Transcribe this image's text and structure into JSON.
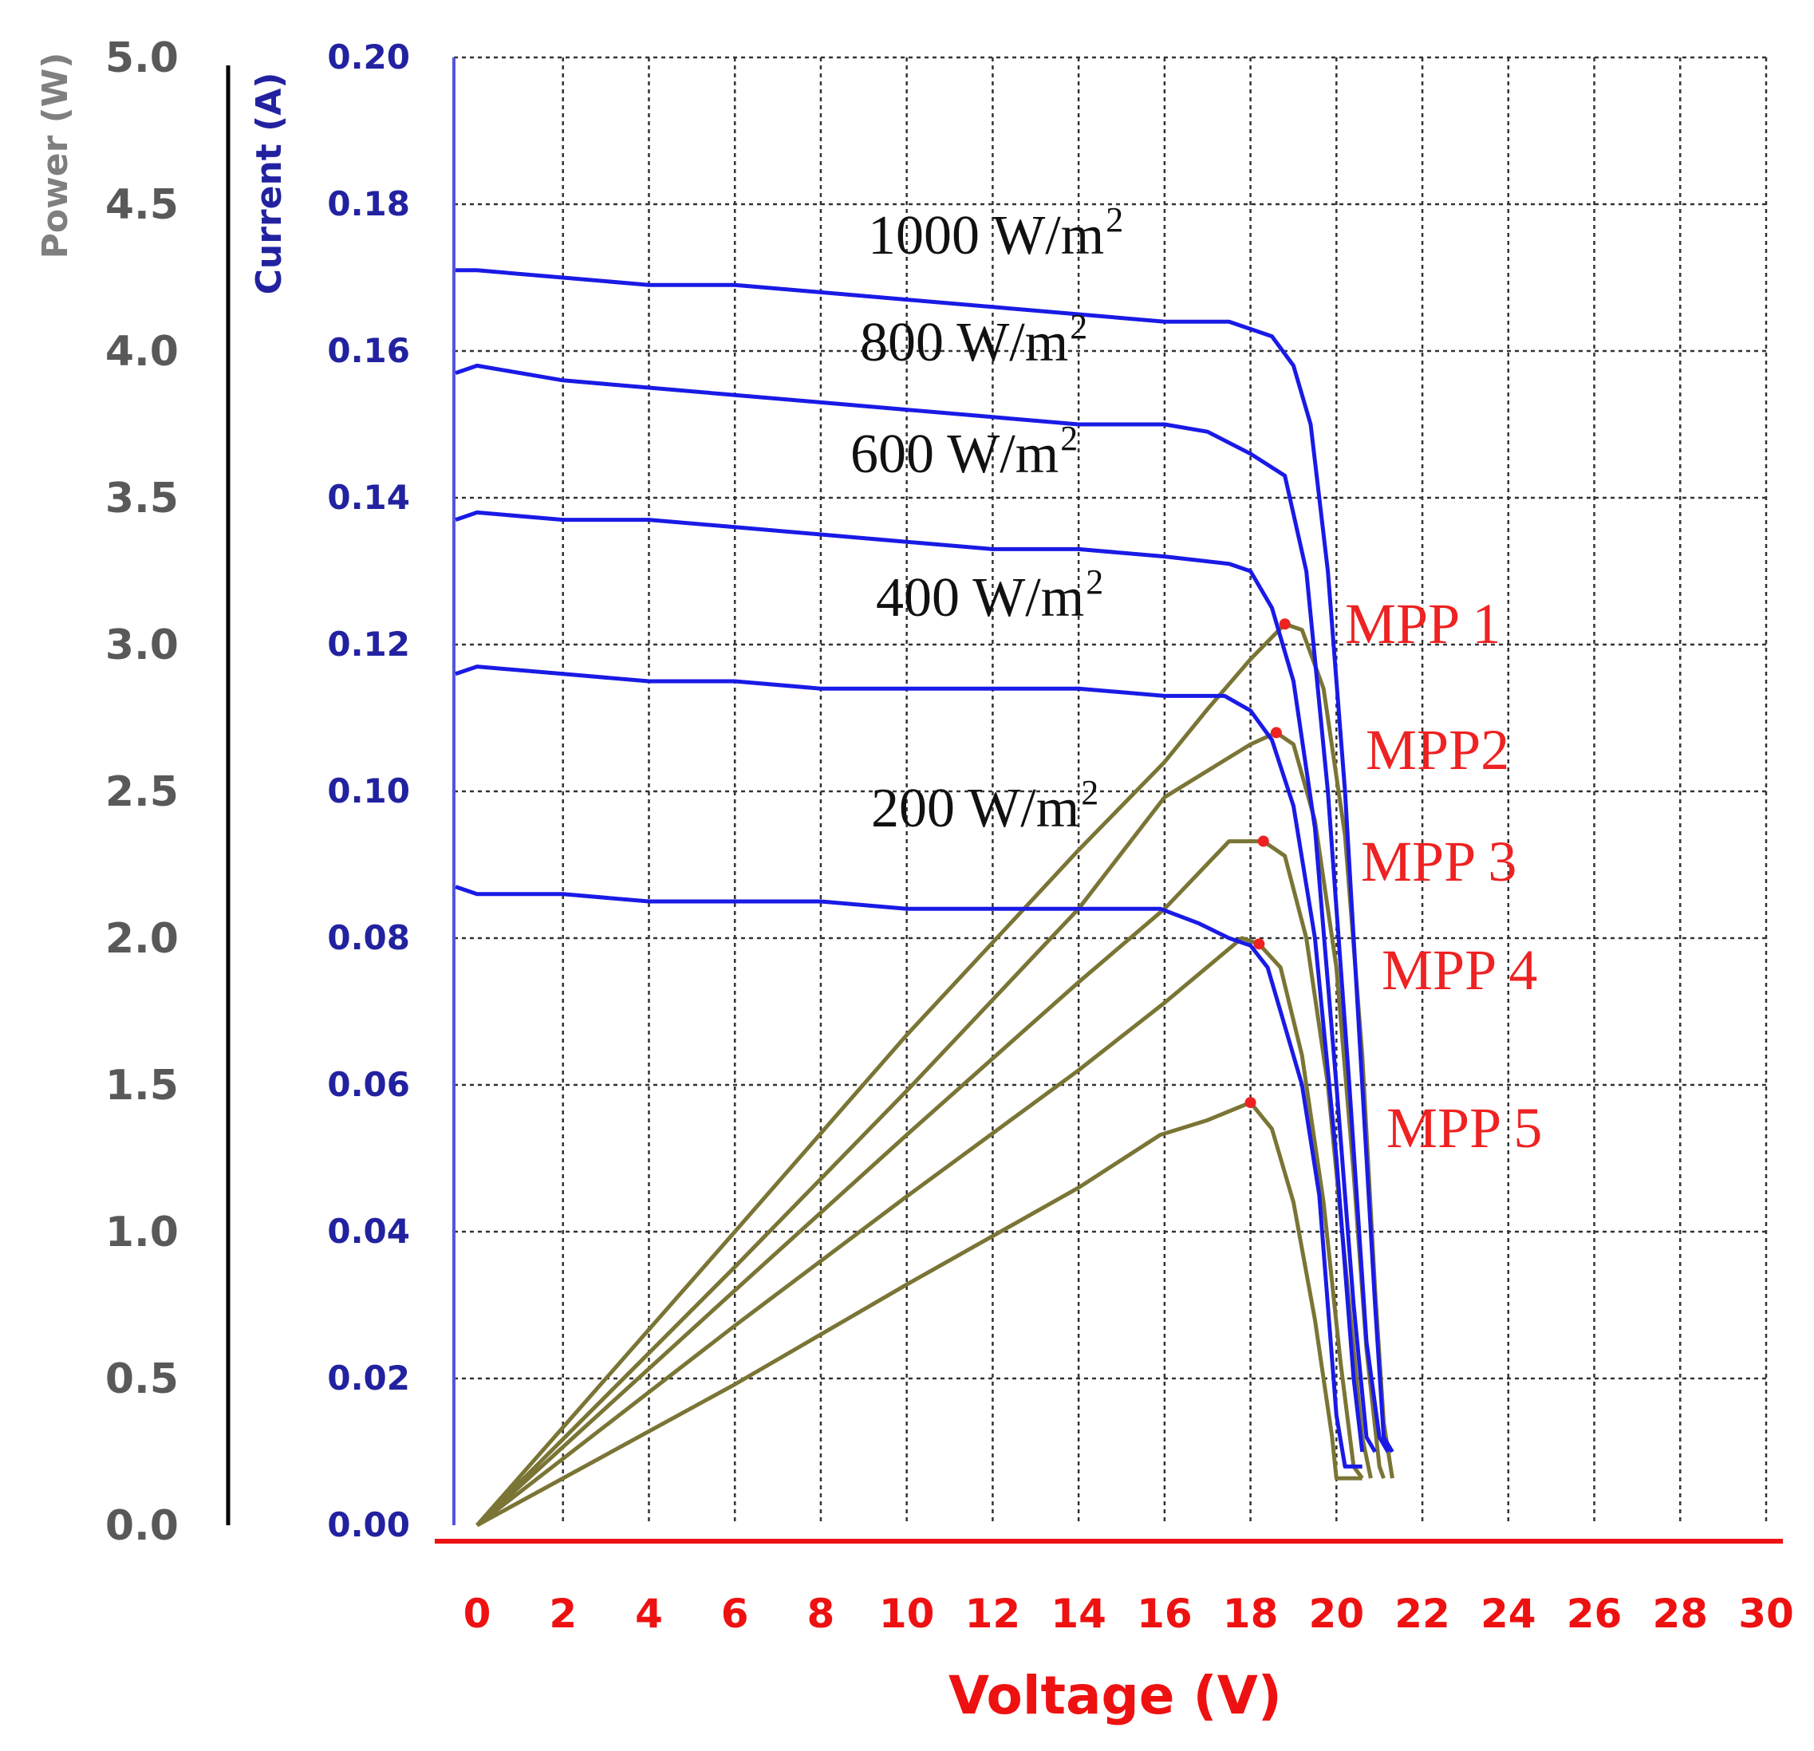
{
  "chart_data": {
    "type": "line",
    "title": "",
    "xlabel": "Voltage (V)",
    "ylabel_left_outer": "Power (W)",
    "ylabel_left_inner": "Current (A)",
    "xlim": [
      0,
      30
    ],
    "power_lim": [
      0,
      5
    ],
    "current_lim": [
      0,
      0.2
    ],
    "x_ticks": [
      "0",
      "2",
      "4",
      "6",
      "8",
      "10",
      "12",
      "14",
      "16",
      "18",
      "20",
      "22",
      "24",
      "26",
      "28",
      "30"
    ],
    "power_ticks": [
      "0.0",
      "0.5",
      "1.0",
      "1.5",
      "2.0",
      "2.5",
      "3.0",
      "3.5",
      "4.0",
      "4.5",
      "5.0"
    ],
    "current_ticks": [
      "0.00",
      "0.02",
      "0.04",
      "0.06",
      "0.08",
      "0.10",
      "0.12",
      "0.14",
      "0.16",
      "0.18",
      "0.20"
    ],
    "grid": true,
    "colors": {
      "current": "#1a1ae6",
      "power": "#7a7535",
      "mpp": "#ee2222",
      "voltage_axis": "#ee1111",
      "current_axis": "#5555dd",
      "power_axis": "#000000"
    },
    "series_iv": [
      {
        "name": "1000 W/m2",
        "label": "1000 W/m",
        "sup": "2",
        "points": [
          [
            -0.5,
            0.171
          ],
          [
            0,
            0.171
          ],
          [
            2,
            0.17
          ],
          [
            4,
            0.169
          ],
          [
            6,
            0.169
          ],
          [
            8,
            0.168
          ],
          [
            10,
            0.167
          ],
          [
            12,
            0.166
          ],
          [
            14,
            0.165
          ],
          [
            16,
            0.164
          ],
          [
            17.5,
            0.164
          ],
          [
            18.5,
            0.162
          ],
          [
            19,
            0.158
          ],
          [
            19.4,
            0.15
          ],
          [
            19.8,
            0.13
          ],
          [
            20.2,
            0.1
          ],
          [
            20.6,
            0.06
          ],
          [
            20.9,
            0.03
          ],
          [
            21.1,
            0.012
          ],
          [
            21.3,
            0.01
          ]
        ]
      },
      {
        "name": "800 W/m2",
        "label": "800 W/m",
        "sup": "2",
        "points": [
          [
            -0.5,
            0.157
          ],
          [
            0,
            0.158
          ],
          [
            2,
            0.156
          ],
          [
            4,
            0.155
          ],
          [
            6,
            0.154
          ],
          [
            8,
            0.153
          ],
          [
            10,
            0.152
          ],
          [
            12,
            0.151
          ],
          [
            14,
            0.15
          ],
          [
            16,
            0.15
          ],
          [
            17,
            0.149
          ],
          [
            18,
            0.146
          ],
          [
            18.8,
            0.143
          ],
          [
            19.3,
            0.13
          ],
          [
            19.8,
            0.1
          ],
          [
            20.3,
            0.06
          ],
          [
            20.7,
            0.025
          ],
          [
            21.0,
            0.012
          ],
          [
            21.2,
            0.01
          ]
        ]
      },
      {
        "name": "600 W/m2",
        "label": "600 W/m",
        "sup": "2",
        "points": [
          [
            -0.5,
            0.137
          ],
          [
            0,
            0.138
          ],
          [
            2,
            0.137
          ],
          [
            4,
            0.137
          ],
          [
            6,
            0.136
          ],
          [
            8,
            0.135
          ],
          [
            10,
            0.134
          ],
          [
            12,
            0.133
          ],
          [
            14,
            0.133
          ],
          [
            16,
            0.132
          ],
          [
            17.5,
            0.131
          ],
          [
            18,
            0.13
          ],
          [
            18.5,
            0.125
          ],
          [
            19,
            0.115
          ],
          [
            19.5,
            0.095
          ],
          [
            20,
            0.06
          ],
          [
            20.4,
            0.03
          ],
          [
            20.7,
            0.012
          ],
          [
            20.9,
            0.01
          ]
        ]
      },
      {
        "name": "400 W/m2",
        "label": "400 W/m",
        "sup": "2",
        "points": [
          [
            -0.5,
            0.116
          ],
          [
            0,
            0.117
          ],
          [
            2,
            0.116
          ],
          [
            4,
            0.115
          ],
          [
            6,
            0.115
          ],
          [
            8,
            0.114
          ],
          [
            10,
            0.114
          ],
          [
            12,
            0.114
          ],
          [
            14,
            0.114
          ],
          [
            16,
            0.113
          ],
          [
            17.4,
            0.113
          ],
          [
            18,
            0.111
          ],
          [
            18.5,
            0.107
          ],
          [
            19,
            0.098
          ],
          [
            19.5,
            0.08
          ],
          [
            20,
            0.05
          ],
          [
            20.4,
            0.02
          ],
          [
            20.6,
            0.01
          ]
        ]
      },
      {
        "name": "200 W/m2",
        "label": "200 W/m",
        "sup": "2",
        "points": [
          [
            -0.5,
            0.087
          ],
          [
            0,
            0.086
          ],
          [
            2,
            0.086
          ],
          [
            4,
            0.085
          ],
          [
            6,
            0.085
          ],
          [
            8,
            0.085
          ],
          [
            10,
            0.084
          ],
          [
            12,
            0.084
          ],
          [
            14,
            0.084
          ],
          [
            15.9,
            0.084
          ],
          [
            16.8,
            0.082
          ],
          [
            17.5,
            0.08
          ],
          [
            18,
            0.079
          ],
          [
            18.4,
            0.076
          ],
          [
            18.8,
            0.068
          ],
          [
            19.2,
            0.06
          ],
          [
            19.6,
            0.045
          ],
          [
            20,
            0.015
          ],
          [
            20.2,
            0.008
          ],
          [
            20.6,
            0.008
          ]
        ]
      }
    ],
    "series_pv": [
      {
        "name": "MPP 1",
        "label": "MPP 1",
        "mpp": [
          18.8,
          3.07
        ],
        "points": [
          [
            0,
            0
          ],
          [
            6,
            1.0
          ],
          [
            10,
            1.67
          ],
          [
            14,
            2.3
          ],
          [
            16,
            2.6
          ],
          [
            17,
            2.78
          ],
          [
            18,
            2.95
          ],
          [
            18.8,
            3.07
          ],
          [
            19.2,
            3.05
          ],
          [
            19.7,
            2.85
          ],
          [
            20.2,
            2.35
          ],
          [
            20.6,
            1.6
          ],
          [
            20.9,
            0.8
          ],
          [
            21.1,
            0.35
          ],
          [
            21.3,
            0.16
          ]
        ]
      },
      {
        "name": "MPP2",
        "label": "MPP2",
        "mpp": [
          18.6,
          2.7
        ],
        "points": [
          [
            0,
            0
          ],
          [
            6,
            0.88
          ],
          [
            10,
            1.48
          ],
          [
            14,
            2.1
          ],
          [
            16,
            2.48
          ],
          [
            17,
            2.57
          ],
          [
            18,
            2.66
          ],
          [
            18.6,
            2.7
          ],
          [
            19.0,
            2.66
          ],
          [
            19.5,
            2.4
          ],
          [
            20.0,
            1.9
          ],
          [
            20.4,
            1.2
          ],
          [
            20.7,
            0.6
          ],
          [
            21.0,
            0.2
          ],
          [
            21.1,
            0.16
          ]
        ]
      },
      {
        "name": "MPP 3",
        "label": "MPP 3",
        "mpp": [
          18.3,
          2.33
        ],
        "points": [
          [
            0,
            0
          ],
          [
            6,
            0.8
          ],
          [
            10,
            1.33
          ],
          [
            14,
            1.85
          ],
          [
            16,
            2.1
          ],
          [
            17.5,
            2.33
          ],
          [
            18.3,
            2.33
          ],
          [
            18.8,
            2.28
          ],
          [
            19.3,
            2.0
          ],
          [
            19.8,
            1.5
          ],
          [
            20.2,
            0.9
          ],
          [
            20.6,
            0.3
          ],
          [
            20.8,
            0.16
          ]
        ]
      },
      {
        "name": "MPP 4",
        "label": "MPP 4",
        "mpp": [
          18.2,
          1.98
        ],
        "points": [
          [
            0,
            0
          ],
          [
            6,
            0.68
          ],
          [
            10,
            1.12
          ],
          [
            14,
            1.55
          ],
          [
            16,
            1.78
          ],
          [
            17.8,
            2.0
          ],
          [
            18.2,
            1.98
          ],
          [
            18.7,
            1.9
          ],
          [
            19.2,
            1.6
          ],
          [
            19.7,
            1.1
          ],
          [
            20.1,
            0.55
          ],
          [
            20.4,
            0.2
          ],
          [
            20.6,
            0.16
          ]
        ]
      },
      {
        "name": "MPP 5",
        "label": "MPP 5",
        "mpp": [
          18.0,
          1.44
        ],
        "points": [
          [
            0,
            0
          ],
          [
            6,
            0.48
          ],
          [
            10,
            0.82
          ],
          [
            14,
            1.15
          ],
          [
            15.9,
            1.33
          ],
          [
            17,
            1.38
          ],
          [
            18.0,
            1.44
          ],
          [
            18.5,
            1.35
          ],
          [
            19.0,
            1.1
          ],
          [
            19.5,
            0.7
          ],
          [
            19.9,
            0.3
          ],
          [
            20.0,
            0.16
          ],
          [
            20.6,
            0.16
          ]
        ]
      }
    ]
  }
}
